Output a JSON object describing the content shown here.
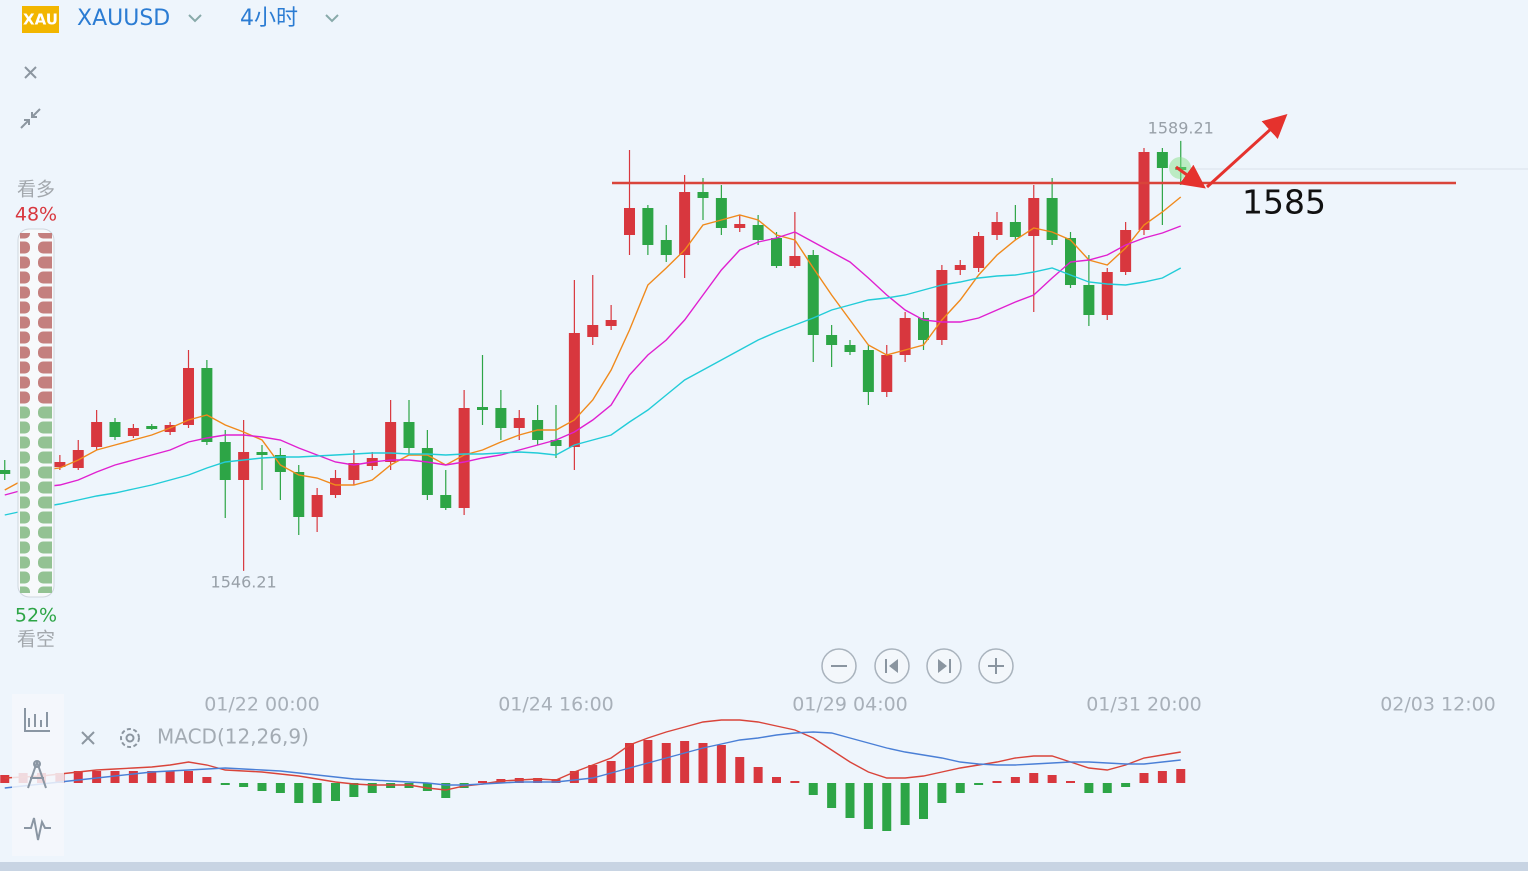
{
  "header": {
    "icon": "XAU",
    "symbol": "XAUUSD",
    "period": "4小时"
  },
  "sentiment": {
    "labels": [
      "看多",
      "看空"
    ],
    "values": [
      48,
      52
    ],
    "value_labels": [
      "48%",
      "52%"
    ],
    "colors": [
      "#c47f7e",
      "#93c293"
    ]
  },
  "chart_data": [
    {
      "type": "candlestick",
      "up_color": "#d8373e",
      "down_color": "#2da546",
      "xlim": [
        0,
        80
      ],
      "ylim": [
        1535,
        1603
      ],
      "xticks": [
        {
          "value": 14,
          "label": "01/22 00:00"
        },
        {
          "value": 30,
          "label": "01/24 16:00"
        },
        {
          "value": 46,
          "label": "01/29 04:00"
        },
        {
          "value": 62,
          "label": "01/31 20:00"
        },
        {
          "value": 78,
          "label": "02/03 12:00"
        }
      ],
      "hline": {
        "value": 1585,
        "color": "#d9443a"
      },
      "open": [
        1556.3,
        1555.5,
        1559.3,
        1556.6,
        1556.5,
        1558.6,
        1561.1,
        1559.7,
        1560.7,
        1560.1,
        1560.8,
        1566.5,
        1559.1,
        1555.3,
        1558.1,
        1557.8,
        1556.1,
        1551.6,
        1553.8,
        1555.3,
        1556.7,
        1557.1,
        1561.1,
        1558.5,
        1553.8,
        1552.5,
        1562.6,
        1562.5,
        1560.5,
        1561.3,
        1559.3,
        1558.6,
        1569.6,
        1570.7,
        1579.8,
        1582.5,
        1579.3,
        1577.8,
        1584.1,
        1583.5,
        1580.5,
        1580.8,
        1579.5,
        1576.7,
        1577.8,
        1569.8,
        1568.8,
        1568.3,
        1564.1,
        1567.8,
        1571.5,
        1569.3,
        1576.3,
        1576.5,
        1579.8,
        1581.1,
        1579.7,
        1583.5,
        1579.5,
        1574.8,
        1571.8,
        1576.1,
        1580.3,
        1588.1,
        1586.6
      ],
      "high": [
        1557.3,
        1560.3,
        1560.3,
        1557.8,
        1559.3,
        1562.3,
        1561.5,
        1560.9,
        1560.9,
        1561.1,
        1568.3,
        1567.3,
        1560.3,
        1561.3,
        1558.8,
        1558.5,
        1556.8,
        1554.5,
        1556.3,
        1558.3,
        1558.1,
        1563.3,
        1563.3,
        1560.3,
        1556.3,
        1564.3,
        1567.8,
        1564.3,
        1562.3,
        1562.8,
        1562.8,
        1575.3,
        1575.8,
        1572.8,
        1588.3,
        1582.8,
        1580.8,
        1585.8,
        1585.5,
        1584.8,
        1581.8,
        1581.8,
        1580.1,
        1582.1,
        1578.3,
        1570.8,
        1569.3,
        1568.8,
        1568.8,
        1572.1,
        1572.1,
        1576.8,
        1577.3,
        1580.1,
        1582.1,
        1582.8,
        1584.8,
        1585.5,
        1580.1,
        1577.8,
        1576.5,
        1581.1,
        1588.5,
        1588.5,
        1589.21
      ],
      "low": [
        1555.3,
        1554.3,
        1555.5,
        1556.3,
        1556.3,
        1558.3,
        1559.3,
        1559.5,
        1560.3,
        1559.8,
        1560.5,
        1558.8,
        1551.5,
        1546.21,
        1554.3,
        1553.3,
        1549.8,
        1550.1,
        1553.5,
        1554.8,
        1556.3,
        1556.3,
        1557.8,
        1553.3,
        1552.3,
        1551.8,
        1560.8,
        1559.3,
        1559.3,
        1558.8,
        1557.5,
        1556.3,
        1568.8,
        1570.3,
        1577.8,
        1577.8,
        1577.1,
        1575.5,
        1581.3,
        1579.8,
        1580.1,
        1578.8,
        1576.5,
        1576.5,
        1567.1,
        1566.6,
        1567.8,
        1562.8,
        1563.6,
        1567.1,
        1568.3,
        1568.8,
        1575.8,
        1576.1,
        1579.3,
        1579.3,
        1572.1,
        1578.8,
        1574.5,
        1570.7,
        1571.3,
        1575.8,
        1579.8,
        1580.8,
        1584.8
      ],
      "close": [
        1555.9,
        1559.3,
        1556.5,
        1557.1,
        1558.3,
        1561.1,
        1559.6,
        1560.5,
        1560.4,
        1560.8,
        1566.5,
        1559.1,
        1555.3,
        1558.1,
        1557.8,
        1556.1,
        1551.6,
        1553.8,
        1555.5,
        1557.0,
        1557.5,
        1561.1,
        1558.5,
        1553.8,
        1552.5,
        1562.5,
        1562.3,
        1560.5,
        1561.5,
        1559.3,
        1558.7,
        1570.0,
        1570.8,
        1571.3,
        1582.5,
        1578.8,
        1577.8,
        1584.1,
        1583.5,
        1580.5,
        1580.9,
        1579.3,
        1576.7,
        1577.7,
        1569.8,
        1568.8,
        1568.1,
        1564.1,
        1567.8,
        1571.5,
        1569.3,
        1576.3,
        1576.8,
        1579.7,
        1581.1,
        1579.6,
        1583.5,
        1579.3,
        1574.8,
        1571.8,
        1576.1,
        1580.3,
        1588.1,
        1586.5,
        1586.3
      ],
      "lines": [
        {
          "color": "#f08a1c",
          "values": [
            1554.3,
            1555.3,
            1556.3,
            1556.5,
            1557.3,
            1558.3,
            1558.8,
            1559.3,
            1559.8,
            1560.5,
            1561.3,
            1561.8,
            1560.8,
            1560.1,
            1559.3,
            1556.8,
            1555.8,
            1555.5,
            1554.8,
            1554.8,
            1555.3,
            1556.8,
            1557.8,
            1557.8,
            1556.8,
            1557.8,
            1558.3,
            1559.1,
            1559.8,
            1560.3,
            1560.3,
            1561.3,
            1563.3,
            1566.3,
            1570.3,
            1574.8,
            1576.5,
            1578.3,
            1580.8,
            1581.3,
            1581.8,
            1581.3,
            1579.8,
            1579.3,
            1576.5,
            1573.8,
            1571.3,
            1568.8,
            1567.8,
            1568.3,
            1568.8,
            1571.3,
            1573.3,
            1575.8,
            1577.8,
            1579.3,
            1580.5,
            1580.1,
            1579.3,
            1577.3,
            1576.8,
            1578.5,
            1580.8,
            1582.1,
            1583.6
          ]
        },
        {
          "color": "#e020d0",
          "values": [
            1553.8,
            1554.3,
            1554.6,
            1554.8,
            1555.3,
            1556.1,
            1556.8,
            1557.3,
            1557.8,
            1558.3,
            1559.1,
            1559.5,
            1559.8,
            1559.8,
            1559.6,
            1559.3,
            1558.5,
            1557.8,
            1557.1,
            1556.8,
            1557.1,
            1557.3,
            1557.3,
            1557.1,
            1556.8,
            1557.1,
            1557.5,
            1557.8,
            1558.3,
            1558.8,
            1559.3,
            1560.1,
            1561.3,
            1562.8,
            1565.8,
            1567.8,
            1569.3,
            1571.3,
            1573.8,
            1576.3,
            1578.3,
            1579.1,
            1579.5,
            1580.1,
            1579.1,
            1578.1,
            1577.1,
            1575.5,
            1573.8,
            1572.3,
            1571.3,
            1571.1,
            1571.1,
            1571.5,
            1572.3,
            1573.1,
            1573.8,
            1575.5,
            1577.1,
            1577.3,
            1577.8,
            1578.8,
            1579.5,
            1580.0,
            1580.7
          ]
        },
        {
          "color": "#22ccd8",
          "values": [
            1551.8,
            1552.2,
            1552.6,
            1552.9,
            1553.3,
            1553.7,
            1554.0,
            1554.4,
            1554.8,
            1555.3,
            1555.8,
            1556.5,
            1557.1,
            1557.3,
            1557.5,
            1557.6,
            1557.6,
            1557.7,
            1557.8,
            1557.9,
            1558.0,
            1558.0,
            1557.9,
            1557.9,
            1557.8,
            1557.9,
            1557.9,
            1558.0,
            1558.1,
            1558.0,
            1557.8,
            1558.8,
            1559.3,
            1559.8,
            1561.1,
            1562.3,
            1563.8,
            1565.3,
            1566.3,
            1567.3,
            1568.3,
            1569.3,
            1570.1,
            1570.8,
            1571.5,
            1572.3,
            1572.8,
            1573.3,
            1573.5,
            1573.8,
            1574.3,
            1574.8,
            1575.1,
            1575.5,
            1575.7,
            1575.8,
            1576.1,
            1576.5,
            1575.8,
            1575.1,
            1574.9,
            1574.8,
            1575.1,
            1575.5,
            1576.5
          ]
        }
      ]
    },
    {
      "type": "bar",
      "title": "MACD(12,26,9)",
      "up_color": "#d8373e",
      "down_color": "#2da546",
      "xlim": [
        0,
        80
      ],
      "ylim": [
        -5.7,
        6.5
      ],
      "values": [
        0.8,
        1.0,
        1.0,
        1.0,
        1.2,
        1.2,
        1.2,
        1.2,
        1.2,
        1.2,
        1.2,
        0.6,
        -0.2,
        -0.4,
        -0.8,
        -1.0,
        -2.0,
        -2.0,
        -1.8,
        -1.4,
        -1.0,
        -0.5,
        -0.5,
        -0.8,
        -1.5,
        -0.5,
        0.2,
        0.4,
        0.5,
        0.5,
        0.4,
        1.2,
        1.8,
        2.2,
        4.0,
        4.3,
        4.0,
        4.2,
        4.0,
        3.8,
        2.6,
        1.6,
        0.6,
        0.2,
        -1.2,
        -2.5,
        -3.5,
        -4.6,
        -4.8,
        -4.2,
        -3.6,
        -2.0,
        -1.0,
        -0.2,
        0.2,
        0.6,
        1.0,
        0.8,
        0.2,
        -1.0,
        -1.0,
        -0.4,
        1.0,
        1.2,
        1.4
      ],
      "lines": [
        {
          "color": "#d9443a",
          "values": [
            0.5,
            0.6,
            0.7,
            0.9,
            1.1,
            1.3,
            1.4,
            1.5,
            1.6,
            1.8,
            2.1,
            1.8,
            1.3,
            1.2,
            1.1,
            0.9,
            0.7,
            0.4,
            0.1,
            -0.1,
            -0.2,
            -0.2,
            -0.2,
            -0.5,
            -0.7,
            -0.3,
            -0.1,
            0.2,
            0.3,
            0.4,
            0.3,
            1.1,
            1.8,
            2.5,
            3.8,
            4.5,
            5.1,
            5.6,
            6.1,
            6.3,
            6.3,
            6.1,
            5.7,
            5.3,
            4.5,
            3.3,
            2.1,
            1.1,
            0.5,
            0.5,
            0.7,
            1.1,
            1.5,
            1.8,
            2.1,
            2.5,
            2.7,
            2.7,
            2.1,
            1.5,
            1.3,
            1.8,
            2.5,
            2.8,
            3.1
          ]
        },
        {
          "color": "#4a7fd6",
          "values": [
            -0.5,
            -0.3,
            -0.1,
            0.1,
            0.3,
            0.5,
            0.7,
            0.9,
            1.1,
            1.2,
            1.3,
            1.4,
            1.5,
            1.4,
            1.3,
            1.2,
            1.0,
            0.8,
            0.6,
            0.4,
            0.3,
            0.2,
            0.1,
            0,
            -0.2,
            -0.2,
            -0.1,
            0,
            0.1,
            0.1,
            0.1,
            0.3,
            0.5,
            1.0,
            1.5,
            2.0,
            2.5,
            3.0,
            3.5,
            3.9,
            4.3,
            4.5,
            4.8,
            5.0,
            5.1,
            5.0,
            4.5,
            4.0,
            3.5,
            3.1,
            2.8,
            2.5,
            2.1,
            1.9,
            1.8,
            1.8,
            1.9,
            2.0,
            2.1,
            2.1,
            2.0,
            1.9,
            1.9,
            2.1,
            2.3
          ]
        }
      ]
    }
  ]
}
